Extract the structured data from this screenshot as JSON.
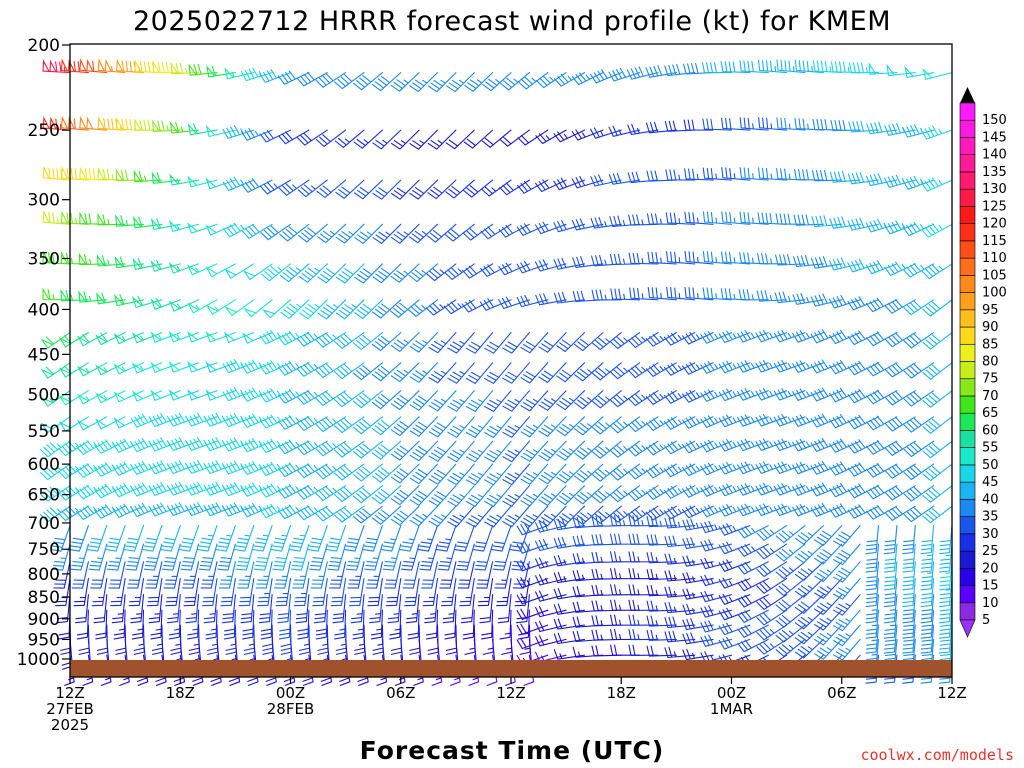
{
  "title": "2025022712 HRRR forecast wind profile (kt) for KMEM",
  "x_axis_title": "Forecast Time (UTC)",
  "credit": "coolwx.com/models",
  "colors": {
    "ground": "#a0522d",
    "credit": "#e8332c"
  },
  "chart_data": {
    "type": "wind barb time-height profile",
    "title": "2025022712 HRRR forecast wind profile (kt) for KMEM",
    "xlabel": "Forecast Time (UTC)",
    "ylabel": "",
    "x_range_hours": [
      0,
      48
    ],
    "y_range_hpa": [
      200,
      1000
    ],
    "y_scale": "log",
    "y_ticks": [
      200,
      250,
      300,
      350,
      400,
      450,
      500,
      550,
      600,
      650,
      700,
      750,
      800,
      850,
      900,
      950,
      1000
    ],
    "x_ticks": [
      {
        "h": 0,
        "lines": [
          "12Z",
          "27FEB",
          "2025"
        ]
      },
      {
        "h": 6,
        "lines": [
          "18Z"
        ]
      },
      {
        "h": 12,
        "lines": [
          "00Z",
          "28FEB"
        ]
      },
      {
        "h": 18,
        "lines": [
          "06Z"
        ]
      },
      {
        "h": 24,
        "lines": [
          "12Z"
        ]
      },
      {
        "h": 30,
        "lines": [
          "18Z"
        ]
      },
      {
        "h": 36,
        "lines": [
          "00Z",
          "1MAR"
        ]
      },
      {
        "h": 42,
        "lines": [
          "06Z"
        ]
      },
      {
        "h": 48,
        "lines": [
          "12Z"
        ]
      }
    ],
    "colorbar": {
      "units": "kt",
      "levels": [
        5,
        10,
        15,
        20,
        25,
        30,
        35,
        40,
        45,
        50,
        55,
        60,
        65,
        70,
        75,
        80,
        85,
        90,
        95,
        100,
        105,
        110,
        115,
        120,
        125,
        130,
        135,
        140,
        145,
        150
      ],
      "colors": [
        "#8a2be2",
        "#5a00ff",
        "#2a00e8",
        "#1a1ad0",
        "#1a30e8",
        "#1a55ee",
        "#1a8af2",
        "#1ab4f2",
        "#1ad6e8",
        "#1ae8c8",
        "#1ae0a0",
        "#1ae85a",
        "#3ce81a",
        "#8ae81a",
        "#c8ee1a",
        "#eef01a",
        "#ffd91a",
        "#ffbf1a",
        "#ffa01a",
        "#ff8a1a",
        "#ff6e1a",
        "#ff501a",
        "#ff301a",
        "#ff1a1a",
        "#ff1a4a",
        "#ff1a70",
        "#ff1a96",
        "#ff1abe",
        "#ff1ae0",
        "#ff1aff"
      ]
    },
    "surface_hpa": 1005,
    "time_step_hours": 1,
    "wind_field_profile": {
      "pressure_levels_hpa": [
        1000,
        950,
        900,
        850,
        800,
        750,
        700,
        650,
        600,
        550,
        500,
        450,
        400,
        350,
        300,
        250,
        220
      ],
      "speed_kt_at": [
        {
          "h": 0,
          "speeds": [
            15,
            20,
            20,
            20,
            25,
            35,
            40,
            45,
            45,
            45,
            55,
            60,
            65,
            70,
            80,
            115,
            125
          ]
        },
        {
          "h": 12,
          "speeds": [
            20,
            25,
            30,
            30,
            35,
            40,
            45,
            45,
            45,
            45,
            45,
            45,
            50,
            45,
            35,
            30,
            40
          ]
        },
        {
          "h": 24,
          "speeds": [
            10,
            15,
            15,
            20,
            25,
            30,
            30,
            35,
            35,
            35,
            35,
            30,
            30,
            30,
            30,
            20,
            35
          ]
        },
        {
          "h": 36,
          "speeds": [
            25,
            30,
            30,
            25,
            25,
            30,
            35,
            35,
            35,
            35,
            35,
            35,
            35,
            35,
            35,
            30,
            40
          ]
        },
        {
          "h": 48,
          "speeds": [
            35,
            40,
            40,
            40,
            45,
            45,
            40,
            40,
            40,
            40,
            40,
            40,
            40,
            45,
            45,
            45,
            50
          ]
        }
      ]
    }
  }
}
